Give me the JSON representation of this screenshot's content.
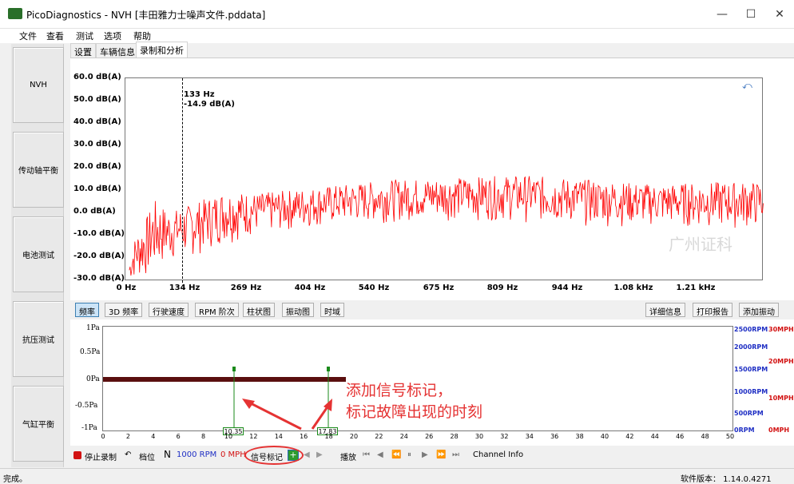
{
  "window": {
    "title": "PicoDiagnostics - NVH [丰田雅力士噪声文件.pddata]",
    "min": "—",
    "max": "☐",
    "close": "✕"
  },
  "menu": [
    "文件",
    "查看",
    "测试",
    "选项",
    "帮助"
  ],
  "nav": [
    "NVH",
    "传动轴平衡",
    "电池测试",
    "抗压测试",
    "气缸平衡"
  ],
  "tabs": [
    "设置",
    "车辆信息",
    "录制和分析"
  ],
  "chart_data": {
    "type": "line",
    "y_ticks": [
      "60.0 dB(A)",
      "50.0 dB(A)",
      "40.0 dB(A)",
      "30.0 dB(A)",
      "20.0 dB(A)",
      "10.0 dB(A)",
      "0.0 dB(A)",
      "-10.0 dB(A)",
      "-20.0 dB(A)",
      "-30.0 dB(A)"
    ],
    "x_ticks": [
      "0 Hz",
      "134 Hz",
      "269 Hz",
      "404 Hz",
      "540 Hz",
      "675 Hz",
      "809 Hz",
      "944 Hz",
      "1.08 kHz",
      "1.21 kHz"
    ],
    "ylim": [
      -30,
      60
    ],
    "color": "#ff0000",
    "cursor": {
      "freq": "133 Hz",
      "level": "-14.9 dB(A)"
    },
    "watermark": "广州证科",
    "envelope": {
      "x_hz": [
        0,
        20,
        40,
        60,
        90,
        134,
        200,
        269,
        404,
        540,
        675,
        809,
        944,
        1080,
        1210,
        1300
      ],
      "peak_db": [
        -30,
        -10,
        -3,
        6,
        1,
        4,
        10,
        9,
        12,
        15,
        16,
        17,
        15,
        13,
        14,
        14
      ],
      "floor_db": [
        -30,
        -30,
        -30,
        -28,
        -22,
        -20,
        -14,
        -10,
        -6,
        -4,
        -3,
        -4,
        -6,
        -6,
        -7,
        -7
      ]
    }
  },
  "toolbar1": {
    "tabs": [
      "频率",
      "3D 频率",
      "行驶速度",
      "RPM 阶次",
      "柱状图",
      "振动图",
      "时域"
    ],
    "details": "详细信息",
    "print": "打印报告",
    "add_vib": "添加振动"
  },
  "lower": {
    "y_ticks": [
      "1Pa",
      "0.5Pa",
      "0Pa",
      "-0.5Pa",
      "-1Pa"
    ],
    "x_ticks": [
      "0",
      "2",
      "4",
      "6",
      "8",
      "10",
      "12",
      "14",
      "16",
      "18",
      "20",
      "22",
      "24",
      "26",
      "28",
      "30",
      "32",
      "34",
      "36",
      "38",
      "40",
      "42",
      "44",
      "46",
      "48",
      "50"
    ],
    "rpm_ticks": [
      "2500RPM",
      "2000RPM",
      "1500RPM",
      "1000RPM",
      "500RPM",
      "0RPM"
    ],
    "mph_ticks": [
      "30MPH",
      "20MPH",
      "10MPH",
      "0MPH"
    ],
    "marker1": "10.35",
    "marker2": "17.83",
    "annotation": [
      "添加信号标记，",
      "标记故障出现的时刻"
    ]
  },
  "statusrow": {
    "stop": "停止录制",
    "gear_label": "档位",
    "gear": "N",
    "rpm": "1000 RPM",
    "mph": "0 MPH",
    "signal_mark": "信号标记",
    "play": "播放",
    "channel": "Channel Info"
  },
  "bottom": {
    "status": "完成。",
    "version": "软件版本： 1.14.0.4271"
  },
  "colors": {
    "trace": "#ff0000",
    "rpm": "#1f2fc4",
    "mph": "#d21212",
    "annotation": "#e53333",
    "marker": "#1a8a1a"
  }
}
